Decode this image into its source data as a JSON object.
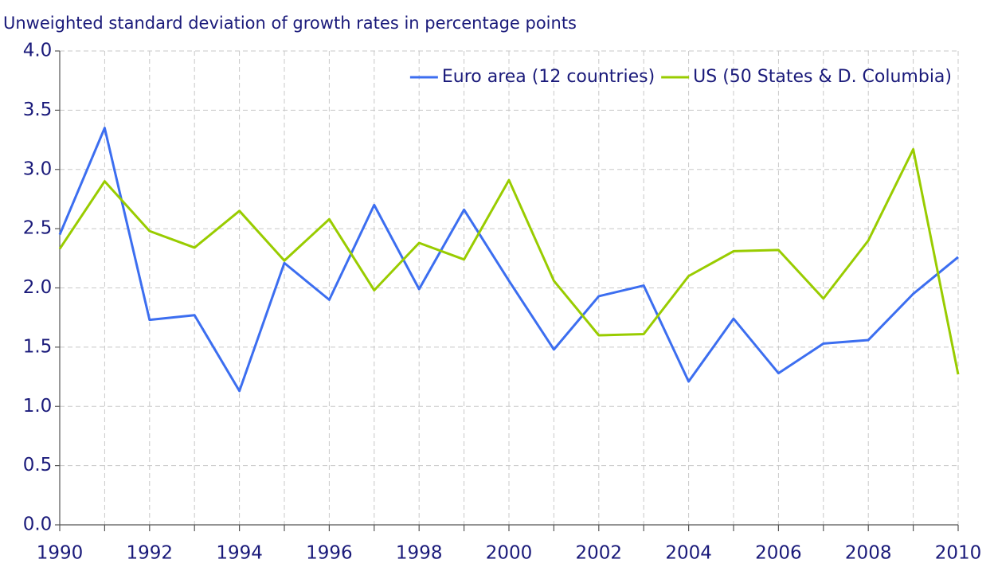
{
  "chart_data": {
    "type": "line",
    "title": "Unweighted standard deviation of growth rates in percentage points",
    "x": [
      1990,
      1991,
      1992,
      1993,
      1994,
      1995,
      1996,
      1997,
      1998,
      1999,
      2000,
      2001,
      2002,
      2003,
      2004,
      2005,
      2006,
      2007,
      2008,
      2009,
      2010
    ],
    "series": [
      {
        "name": "Euro area (12 countries)",
        "color": "#3c6ef0",
        "values": [
          2.45,
          3.35,
          1.73,
          1.77,
          1.13,
          2.21,
          1.9,
          2.7,
          1.99,
          2.66,
          2.06,
          1.48,
          1.93,
          2.02,
          1.21,
          1.74,
          1.28,
          1.53,
          1.56,
          1.95,
          2.26
        ]
      },
      {
        "name": "US (50 States & D. Columbia)",
        "color": "#99cc00",
        "values": [
          2.33,
          2.9,
          2.48,
          2.34,
          2.65,
          2.23,
          2.58,
          1.98,
          2.38,
          2.24,
          2.91,
          2.06,
          1.6,
          1.61,
          2.1,
          2.31,
          2.32,
          1.91,
          2.4,
          3.17,
          1.27
        ]
      }
    ],
    "xlim": [
      1990,
      2010
    ],
    "xticks": [
      1990,
      1992,
      1994,
      1996,
      1998,
      2000,
      2002,
      2004,
      2006,
      2008,
      2010
    ],
    "ylim": [
      0,
      4
    ],
    "yticks": [
      {
        "value": 0,
        "label": "0.0"
      },
      {
        "value": 0.5,
        "label": "0.5"
      },
      {
        "value": 1,
        "label": "1.0"
      },
      {
        "value": 1.5,
        "label": "1.5"
      },
      {
        "value": 2,
        "label": "2.0"
      },
      {
        "value": 2.5,
        "label": "2.5"
      },
      {
        "value": 3,
        "label": "3.0"
      },
      {
        "value": 3.5,
        "label": "3.5"
      },
      {
        "value": 4,
        "label": "4.0"
      }
    ],
    "grid": true,
    "legend": "upper right"
  }
}
